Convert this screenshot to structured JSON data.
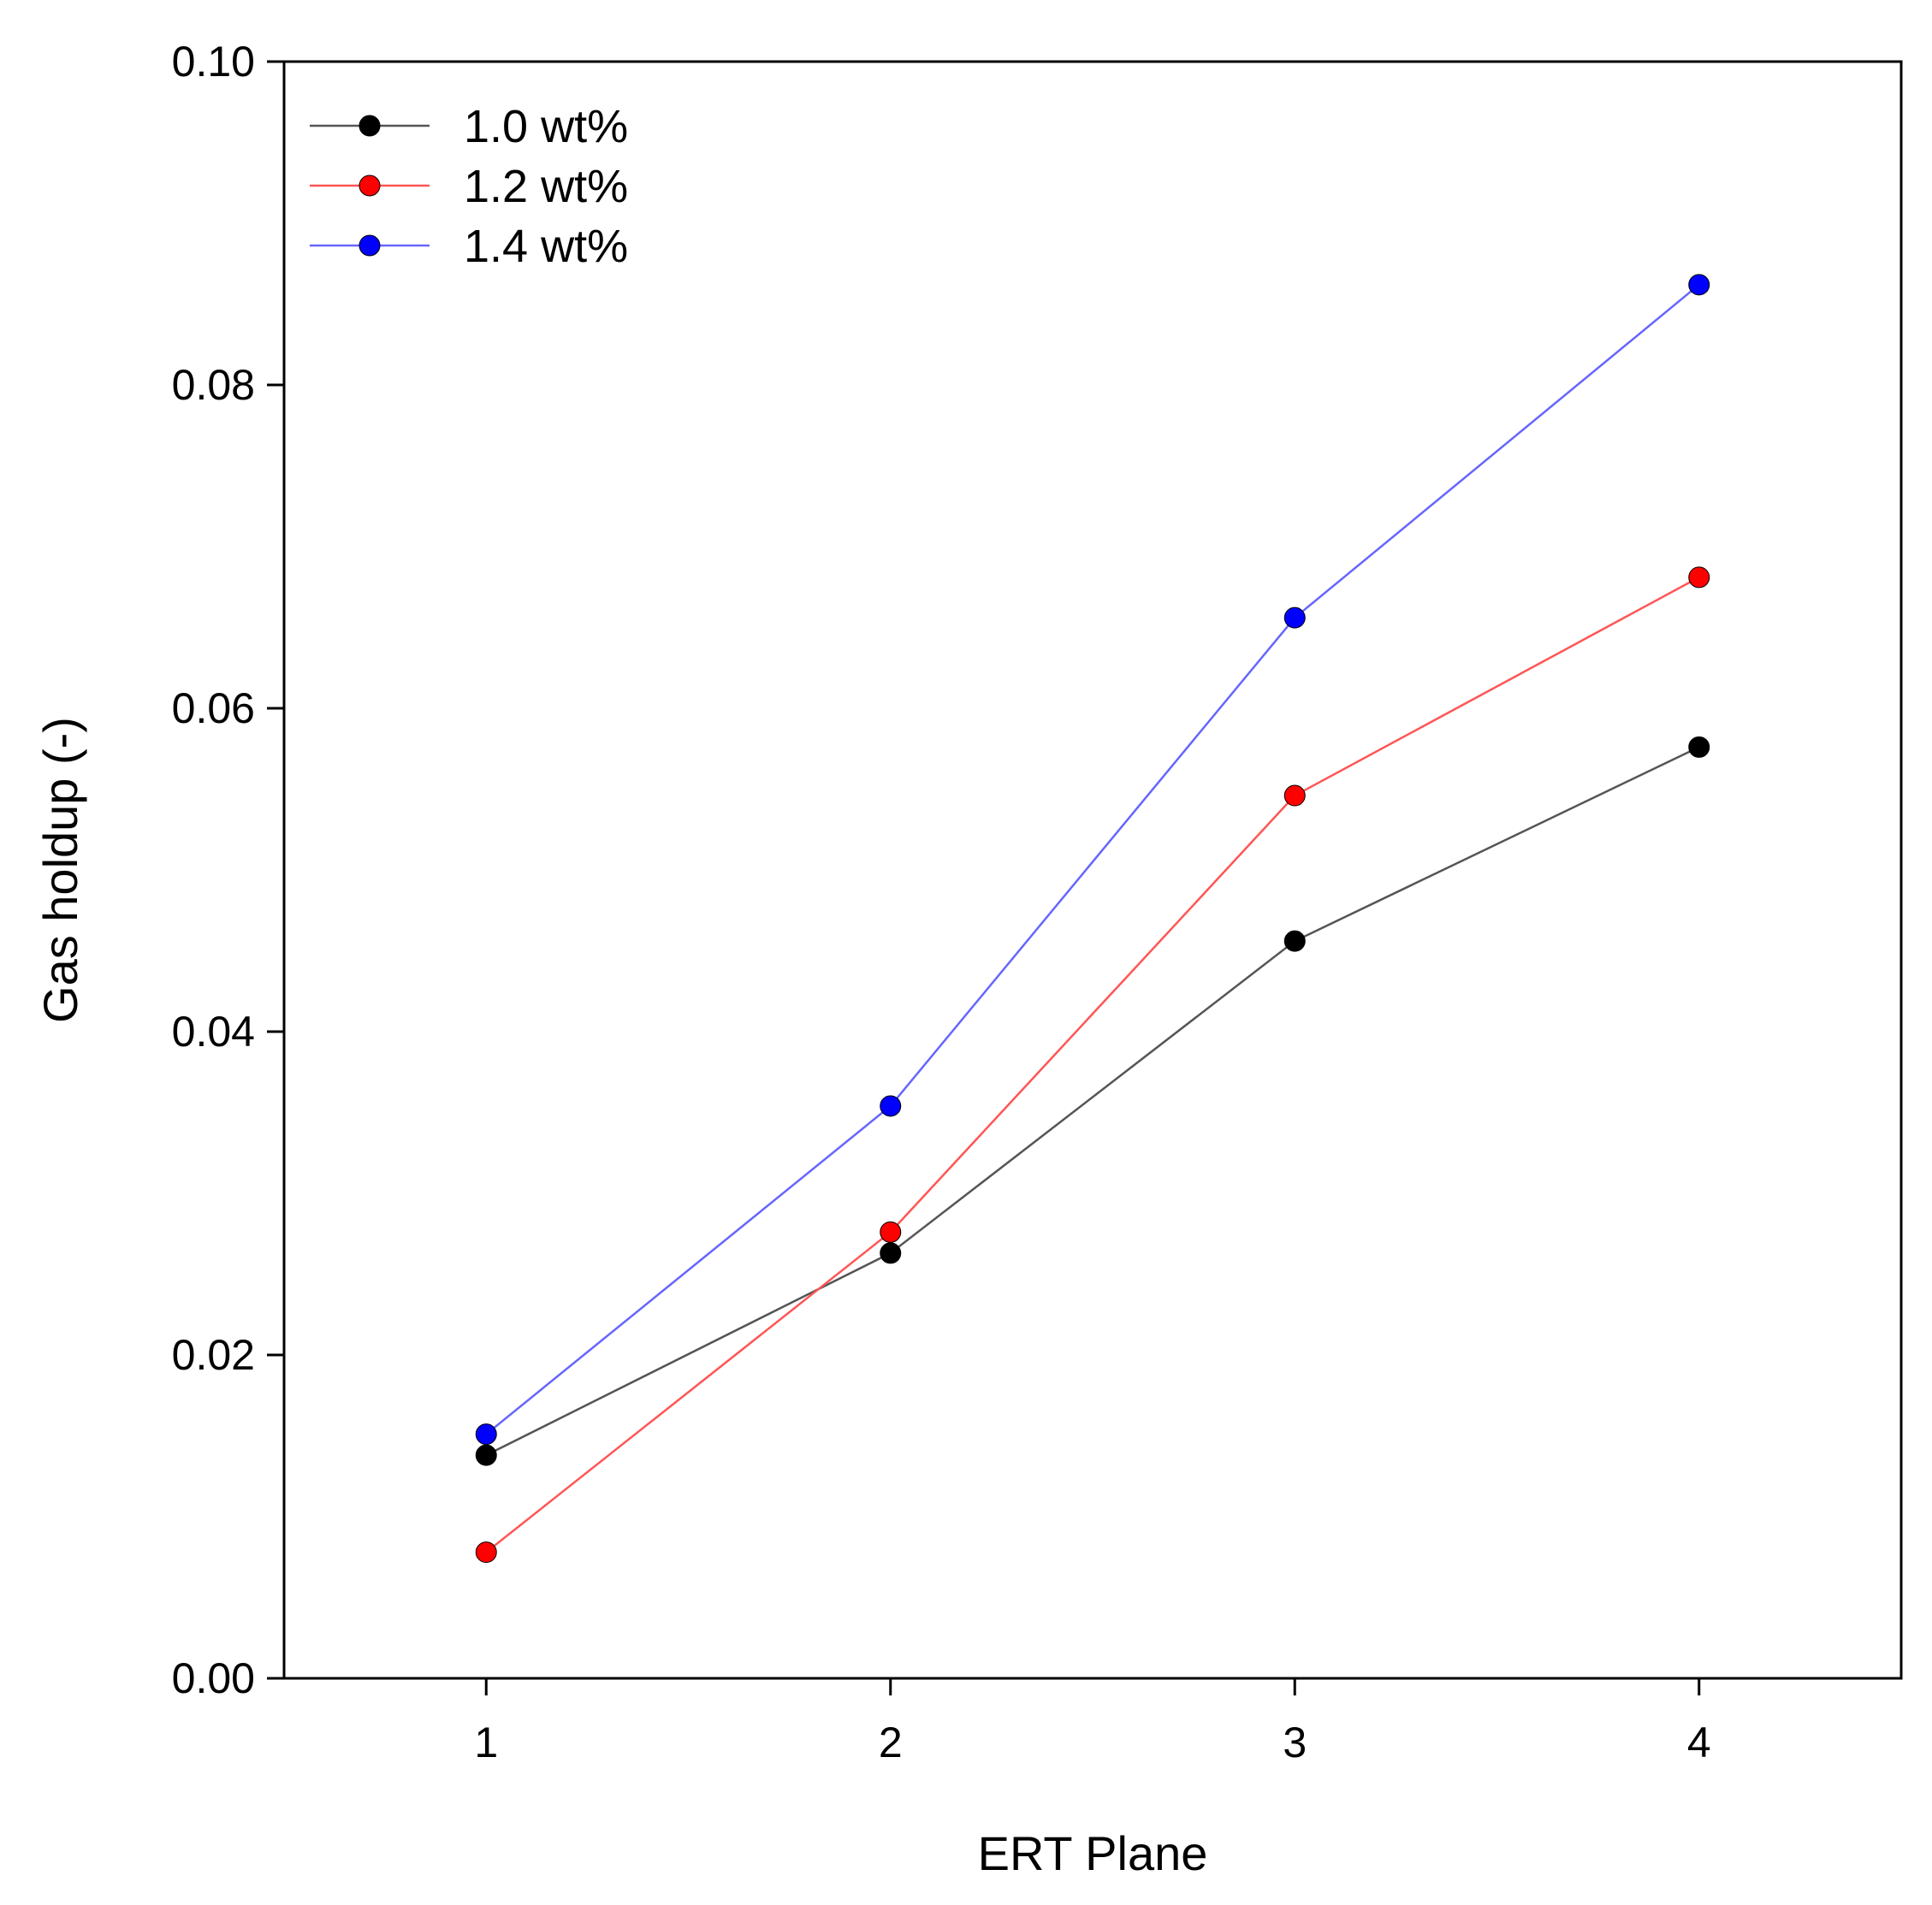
{
  "chart_data": {
    "type": "line",
    "title": "",
    "xlabel": "ERT Plane",
    "ylabel": "Gas holdup (-)",
    "x": [
      1,
      2,
      3,
      4
    ],
    "x_tick_labels": [
      "1",
      "2",
      "3",
      "4"
    ],
    "xlim": [
      0.5,
      4.5
    ],
    "ylim": [
      0.0,
      0.1
    ],
    "y_ticks": [
      0.0,
      0.02,
      0.04,
      0.06,
      0.08,
      0.1
    ],
    "y_tick_labels": [
      "0.00",
      "0.02",
      "0.04",
      "0.06",
      "0.08",
      "0.10"
    ],
    "grid": false,
    "legend_position": "top-left",
    "series": [
      {
        "name": "1.0 wt%",
        "line_color": "#555555",
        "marker_color": "#000000",
        "values": [
          0.0138,
          0.0263,
          0.0456,
          0.0576
        ]
      },
      {
        "name": "1.2 wt%",
        "line_color": "#ff5555",
        "marker_color": "#ff0000",
        "values": [
          0.0078,
          0.0276,
          0.0546,
          0.0681
        ]
      },
      {
        "name": "1.4 wt%",
        "line_color": "#6666ff",
        "marker_color": "#0000ff",
        "values": [
          0.0151,
          0.0354,
          0.0656,
          0.0862
        ]
      }
    ]
  }
}
